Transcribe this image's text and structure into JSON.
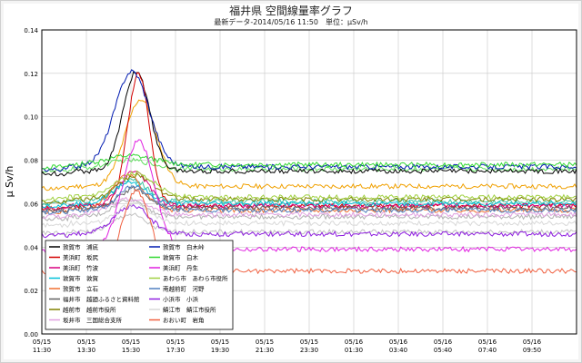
{
  "title": "福井県 空間線量率グラフ",
  "subtitle": "最新データ-2014/05/16 11:50　単位：μSv/h",
  "chart_data": {
    "type": "line",
    "ylabel": "μ Sv/h",
    "ylim": [
      0,
      0.14
    ],
    "y_ticks": [
      "0.00",
      "0.02",
      "0.04",
      "0.06",
      "0.08",
      "0.10",
      "0.12",
      "0.14"
    ],
    "x_ticks": [
      {
        "date": "05/15",
        "time": "11:30"
      },
      {
        "date": "05/15",
        "time": "13:30"
      },
      {
        "date": "05/15",
        "time": "15:30"
      },
      {
        "date": "05/15",
        "time": "17:30"
      },
      {
        "date": "05/15",
        "time": "19:30"
      },
      {
        "date": "05/15",
        "time": "21:30"
      },
      {
        "date": "05/15",
        "time": "23:30"
      },
      {
        "date": "05/16",
        "time": "01:30"
      },
      {
        "date": "05/16",
        "time": "03:40"
      },
      {
        "date": "05/16",
        "time": "05:40"
      },
      {
        "date": "05/16",
        "time": "07:40"
      },
      {
        "date": "05/16",
        "time": "09:50"
      }
    ],
    "x_hours": [
      0,
      24.33
    ],
    "grid": true,
    "legend_position": "bottom-left",
    "series": [
      {
        "name": "敦賀市　浦底",
        "color": "#000000",
        "base": 0.075,
        "peak": 0.121,
        "peak_time": 4.3,
        "peak_width": 0.85
      },
      {
        "name": "美浜町　坂尻",
        "color": "#d40000",
        "base": 0.059,
        "peak": 0.12,
        "peak_time": 4.4,
        "peak_width": 0.7
      },
      {
        "name": "美浜町　竹波",
        "color": "#d80080",
        "base": 0.059,
        "peak": 0.075,
        "peak_time": 4.2,
        "peak_width": 0.9
      },
      {
        "name": "敦賀市　敦賀",
        "color": "#00c0d8",
        "base": 0.06,
        "peak": 0.07,
        "peak_time": 4.0,
        "peak_width": 1.0
      },
      {
        "name": "敦賀市　立石",
        "color": "#f07030",
        "base": 0.057,
        "peak": 0.073,
        "peak_time": 3.9,
        "peak_width": 1.0
      },
      {
        "name": "福井市　越廼ふるさと資料館",
        "color": "#606060",
        "base": 0.058,
        "peak": 0.067,
        "peak_time": 4.2,
        "peak_width": 0.9
      },
      {
        "name": "越前市　越前市役所",
        "color": "#808000",
        "base": 0.062,
        "peak": 0.073,
        "peak_time": 4.3,
        "peak_width": 1.1
      },
      {
        "name": "坂井市　三国総合支所",
        "color": "#e0a0e0",
        "base": 0.055,
        "peak": 0.062,
        "peak_time": 4.0,
        "peak_width": 1.2
      },
      {
        "name": "敦賀市　白木峠",
        "color": "#001ab0",
        "base": 0.077,
        "peak": 0.121,
        "peak_time": 4.1,
        "peak_width": 1.1
      },
      {
        "name": "敦賀市　白木",
        "color": "#30d830",
        "base": 0.078,
        "peak": 0.082,
        "peak_time": 4.0,
        "peak_width": 1.5
      },
      {
        "name": "美浜町　丹生",
        "color": "#e020e0",
        "base": 0.039,
        "peak": 0.089,
        "peak_time": 4.4,
        "peak_width": 1.0
      },
      {
        "name": "あわら市　あわら市役所",
        "color": "#a0d040",
        "base": 0.063,
        "peak": 0.074,
        "peak_time": 4.3,
        "peak_width": 1.2
      },
      {
        "name": "南越前町　河野",
        "color": "#5080c0",
        "base": 0.057,
        "peak": 0.068,
        "peak_time": 4.2,
        "peak_width": 1.0
      },
      {
        "name": "小浜市　小浜",
        "color": "#9020e0",
        "base": 0.046,
        "peak": 0.059,
        "peak_time": 4.1,
        "peak_width": 1.1
      },
      {
        "name": "鯖江市　鯖江市役所",
        "color": "#d8d8d8",
        "base": 0.051,
        "peak": 0.06,
        "peak_time": 4.2,
        "peak_width": 1.0
      },
      {
        "name": "おおい町　岩角",
        "color": "#f06040",
        "base": 0.029,
        "peak": 0.066,
        "peak_time": 4.3,
        "peak_width": 0.9
      }
    ],
    "extra_unlabeled_series": [
      {
        "color": "#f0a000",
        "base": 0.068,
        "peak": 0.108,
        "peak_time": 4.5,
        "peak_width": 1.0
      },
      {
        "color": "#60e060",
        "base": 0.076,
        "peak": 0.08,
        "peak_time": 4.0,
        "peak_width": 1.4
      },
      {
        "color": "#b0b0b0",
        "base": 0.054,
        "peak": 0.062,
        "peak_time": 4.0,
        "peak_width": 1.0
      },
      {
        "color": "#40c0a0",
        "base": 0.061,
        "peak": 0.071,
        "peak_time": 4.1,
        "peak_width": 1.0
      },
      {
        "color": "#c0c0c0",
        "base": 0.047,
        "peak": 0.055,
        "peak_time": 4.0,
        "peak_width": 1.0
      }
    ]
  }
}
